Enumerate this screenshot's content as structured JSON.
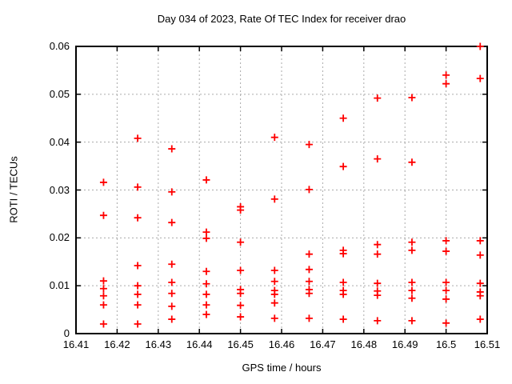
{
  "window": {
    "background": "#ffffff",
    "foreground": "#000000"
  },
  "chart_data": {
    "type": "scatter",
    "title": "Day 034 of 2023, Rate Of TEC Index for receiver drao",
    "xlabel": "GPS time / hours",
    "ylabel": "ROTI / TECUs",
    "xlim": [
      16.41,
      16.51
    ],
    "ylim": [
      0,
      0.06
    ],
    "grid": true,
    "legend": "none",
    "x_ticks": [
      16.41,
      16.42,
      16.43,
      16.44,
      16.45,
      16.46,
      16.47,
      16.48,
      16.49,
      16.5,
      16.51
    ],
    "x_tick_labels": [
      "16.41",
      "16.42",
      "16.43",
      "16.44",
      "16.45",
      "16.46",
      "16.47",
      "16.48",
      "16.49",
      "16.5",
      "16.51"
    ],
    "y_ticks": [
      0,
      0.01,
      0.02,
      0.03,
      0.04,
      0.05,
      0.06
    ],
    "y_tick_labels": [
      "0",
      "0.01",
      "0.02",
      "0.03",
      "0.04",
      "0.05",
      "0.06"
    ],
    "marker": {
      "shape": "plus",
      "color": "#ff0000",
      "size": 9,
      "stroke_width": 1.8
    },
    "grid_color": "#aaaaaa",
    "border_color": "#000000",
    "series": [
      {
        "name": "ROTI",
        "points": [
          [
            16.4167,
            0.0316
          ],
          [
            16.4167,
            0.0247
          ],
          [
            16.4167,
            0.011
          ],
          [
            16.4167,
            0.0094
          ],
          [
            16.4167,
            0.0079
          ],
          [
            16.4167,
            0.006
          ],
          [
            16.4167,
            0.002
          ],
          [
            16.425,
            0.0408
          ],
          [
            16.425,
            0.0306
          ],
          [
            16.425,
            0.0242
          ],
          [
            16.425,
            0.0142
          ],
          [
            16.425,
            0.01
          ],
          [
            16.425,
            0.0082
          ],
          [
            16.425,
            0.006
          ],
          [
            16.425,
            0.002
          ],
          [
            16.4333,
            0.0386
          ],
          [
            16.4333,
            0.0296
          ],
          [
            16.4333,
            0.0232
          ],
          [
            16.4333,
            0.0145
          ],
          [
            16.4333,
            0.0107
          ],
          [
            16.4333,
            0.0084
          ],
          [
            16.4333,
            0.0057
          ],
          [
            16.4333,
            0.003
          ],
          [
            16.4417,
            0.0321
          ],
          [
            16.4417,
            0.0212
          ],
          [
            16.4417,
            0.0199
          ],
          [
            16.4417,
            0.013
          ],
          [
            16.4417,
            0.0104
          ],
          [
            16.4417,
            0.0082
          ],
          [
            16.4417,
            0.006
          ],
          [
            16.4417,
            0.004
          ],
          [
            16.45,
            0.0265
          ],
          [
            16.45,
            0.0258
          ],
          [
            16.45,
            0.0191
          ],
          [
            16.45,
            0.0132
          ],
          [
            16.45,
            0.0092
          ],
          [
            16.45,
            0.0084
          ],
          [
            16.45,
            0.0059
          ],
          [
            16.45,
            0.0035
          ],
          [
            16.4583,
            0.041
          ],
          [
            16.4583,
            0.0281
          ],
          [
            16.4583,
            0.0132
          ],
          [
            16.4583,
            0.0109
          ],
          [
            16.4583,
            0.009
          ],
          [
            16.4583,
            0.0082
          ],
          [
            16.4583,
            0.0064
          ],
          [
            16.4583,
            0.0032
          ],
          [
            16.4667,
            0.0395
          ],
          [
            16.4667,
            0.0301
          ],
          [
            16.4667,
            0.0166
          ],
          [
            16.4667,
            0.0134
          ],
          [
            16.4667,
            0.0109
          ],
          [
            16.4667,
            0.0092
          ],
          [
            16.4667,
            0.0084
          ],
          [
            16.4667,
            0.0032
          ],
          [
            16.475,
            0.045
          ],
          [
            16.475,
            0.0349
          ],
          [
            16.475,
            0.0174
          ],
          [
            16.475,
            0.0167
          ],
          [
            16.475,
            0.0107
          ],
          [
            16.475,
            0.009
          ],
          [
            16.475,
            0.0082
          ],
          [
            16.475,
            0.003
          ],
          [
            16.4833,
            0.0492
          ],
          [
            16.4833,
            0.0365
          ],
          [
            16.4833,
            0.0186
          ],
          [
            16.4833,
            0.0166
          ],
          [
            16.4833,
            0.0105
          ],
          [
            16.4833,
            0.0089
          ],
          [
            16.4833,
            0.008
          ],
          [
            16.4833,
            0.0027
          ],
          [
            16.4917,
            0.0493
          ],
          [
            16.4917,
            0.0358
          ],
          [
            16.4917,
            0.0191
          ],
          [
            16.4917,
            0.0174
          ],
          [
            16.4917,
            0.0107
          ],
          [
            16.4917,
            0.009
          ],
          [
            16.4917,
            0.0074
          ],
          [
            16.4917,
            0.0027
          ],
          [
            16.5,
            0.054
          ],
          [
            16.5,
            0.0522
          ],
          [
            16.5,
            0.0194
          ],
          [
            16.5,
            0.0172
          ],
          [
            16.5,
            0.0107
          ],
          [
            16.5,
            0.009
          ],
          [
            16.5,
            0.0072
          ],
          [
            16.5,
            0.0022
          ],
          [
            16.5083,
            0.06
          ],
          [
            16.5083,
            0.0533
          ],
          [
            16.5083,
            0.0194
          ],
          [
            16.5083,
            0.0164
          ],
          [
            16.5083,
            0.0105
          ],
          [
            16.5083,
            0.0087
          ],
          [
            16.5083,
            0.0079
          ],
          [
            16.5083,
            0.003
          ]
        ]
      }
    ]
  }
}
